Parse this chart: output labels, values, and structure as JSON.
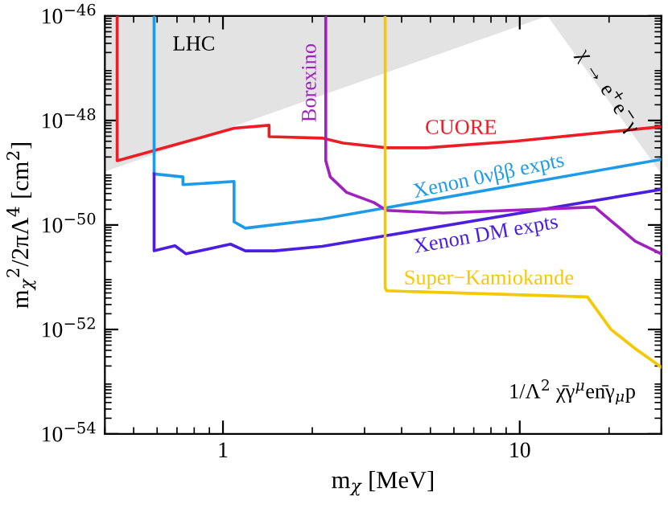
{
  "chart_data": {
    "type": "line",
    "xlabel": "m$_{χ}$ [MeV]",
    "ylabel": "m$_{χ}$$^{2}$/2πΛ$^{4}$ [cm$^{2}$]",
    "log": "xy",
    "xlim": [
      0.4,
      30
    ],
    "ylim": [
      1e-54,
      1e-46
    ],
    "xticks": [
      1,
      10
    ],
    "yticks": [
      {
        "value": 1e-54,
        "label": "10$^{−54}$"
      },
      {
        "value": 1e-52,
        "label": "10$^{−52}$"
      },
      {
        "value": 1e-50,
        "label": "10$^{−50}$"
      },
      {
        "value": 1e-48,
        "label": "10$^{−48}$"
      },
      {
        "value": 1e-46,
        "label": "10$^{−46}$"
      }
    ],
    "grid": false,
    "legend": false,
    "series": [
      {
        "type": "area",
        "color": "#e3e3e3",
        "x": [
          0.4,
          12.4
        ],
        "values": [
          1.05e-49,
          1e-46
        ]
      },
      {
        "type": "area",
        "color": "#e3e3e3",
        "x": [
          12.4,
          30
        ],
        "values": [
          1e-46,
          9.5e-50
        ]
      },
      {
        "color": "#ee1c25",
        "x": [
          0.44,
          0.44,
          1.09,
          1.43,
          1.43,
          2.16,
          2.54,
          3.56,
          4.86,
          9.62,
          30
        ],
        "values": [
          1e-46,
          1.7e-49,
          7.1e-49,
          8.1e-49,
          4.9e-49,
          4.6e-49,
          3.7e-49,
          3e-49,
          3e-49,
          4e-49,
          7.6e-49
        ]
      },
      {
        "color": "#1e9be8",
        "x": [
          0.586,
          0.586,
          0.733,
          0.733,
          1.09,
          1.09,
          1.19,
          2.16,
          30
        ],
        "values": [
          1e-46,
          9.5e-50,
          8.3e-50,
          5.9e-50,
          6.8e-50,
          1.15e-50,
          8.7e-51,
          1.3e-50,
          1.8e-49
        ]
      },
      {
        "color": "#4b1ee0",
        "x": [
          0.586,
          0.586,
          0.689,
          0.751,
          1.06,
          1.19,
          1.49,
          2.16,
          30
        ],
        "values": [
          9.5e-50,
          3.2e-51,
          4e-51,
          2.8e-51,
          4.3e-51,
          3.2e-51,
          3.2e-51,
          3.9e-51,
          4.8e-50
        ]
      },
      {
        "color": "#a020c0",
        "x": [
          2.22,
          2.22,
          2.3,
          2.61,
          3.22,
          3.56,
          5.51,
          17.9,
          21.1,
          24.5,
          30
        ],
        "values": [
          1e-46,
          1.7e-49,
          8.3e-50,
          4.2e-50,
          2.7e-50,
          1.9e-50,
          1.7e-50,
          2.2e-50,
          1e-50,
          4.9e-51,
          2.8e-51
        ]
      },
      {
        "color": "#f5c800",
        "x": [
          3.52,
          3.52,
          3.56,
          16.9,
          20.3,
          24.5,
          30
        ],
        "values": [
          1e-46,
          6.3e-52,
          5.5e-52,
          4.2e-52,
          1e-52,
          4.3e-53,
          1.9e-53
        ]
      }
    ],
    "annotations": [
      "LHC",
      "Borexino",
      "CUORE",
      "Xenon 0νββ expts",
      "Xenon DM expts",
      "Super−Kamiokande",
      "χ → e$^{+}$e$^{−}$γ",
      "1/Λ$^{2}$ χ̄γ$^{μ}$en̄γ$_{μ}$p"
    ]
  }
}
